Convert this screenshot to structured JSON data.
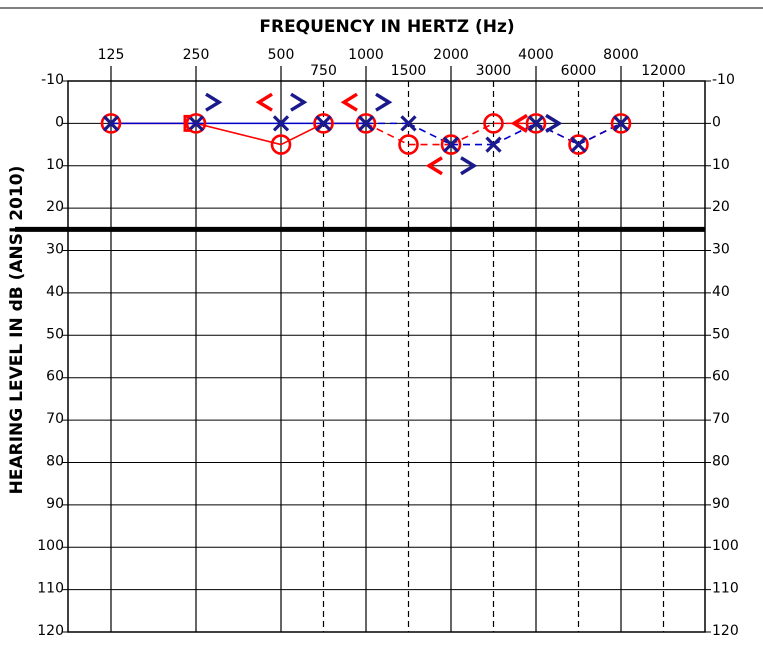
{
  "chart_data": {
    "type": "audiogram",
    "title": "FREQUENCY IN HERTZ (Hz)",
    "y_label": "HEARING LEVEL IN dB (ANSI 2010)",
    "categories": [
      "125",
      "250",
      "500",
      "750",
      "1000",
      "1500",
      "2000",
      "3000",
      "4000",
      "6000",
      "8000",
      "12000"
    ],
    "ylim": [
      -10,
      120
    ],
    "yticks": [
      -10,
      0,
      10,
      20,
      30,
      40,
      50,
      60,
      70,
      80,
      90,
      100,
      110,
      120
    ],
    "reference_line": 25,
    "series": [
      {
        "marker": "o",
        "color": "#ff0000",
        "line": true,
        "values": [
          0,
          0,
          5,
          0,
          0,
          5,
          5,
          0,
          0,
          5,
          0,
          null
        ]
      },
      {
        "marker": "x",
        "color": "#1a1a8c",
        "line_color": "#0000cc",
        "line": true,
        "values": [
          0,
          0,
          0,
          0,
          0,
          0,
          5,
          5,
          0,
          5,
          0,
          null
        ]
      },
      {
        "marker": "<",
        "color": "#ff0000",
        "line": false,
        "values": [
          null,
          null,
          -5,
          null,
          -5,
          null,
          10,
          null,
          0,
          null,
          null,
          null
        ]
      },
      {
        "marker": ">",
        "color": "#1a1a8c",
        "line": false,
        "values": [
          null,
          -5,
          -5,
          null,
          -5,
          null,
          10,
          null,
          0,
          null,
          null,
          null
        ]
      },
      {
        "marker": "[",
        "color": "#ff0000",
        "line": false,
        "values": [
          null,
          0,
          null,
          null,
          null,
          null,
          null,
          null,
          null,
          null,
          null,
          null
        ]
      }
    ]
  }
}
